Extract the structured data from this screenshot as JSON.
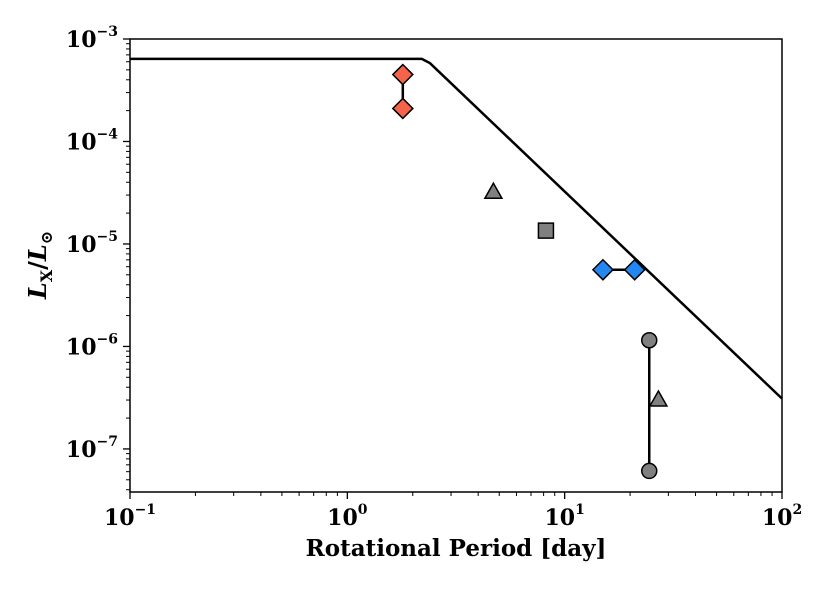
{
  "chart_data": {
    "type": "scatter",
    "xscale": "log",
    "yscale": "log",
    "xlim": [
      0.1,
      100
    ],
    "ylim": [
      3.8e-08,
      0.001
    ],
    "xlabel": "Rotational Period [day]",
    "ylabel": {
      "main": "L",
      "sub_x": "X",
      "slash": "/",
      "main2": "L",
      "sun": "⊙"
    },
    "x_ticks": [
      {
        "value": 0.1,
        "base": "10",
        "exp": "−1"
      },
      {
        "value": 1,
        "base": "10",
        "exp": "0"
      },
      {
        "value": 10,
        "base": "10",
        "exp": "1"
      },
      {
        "value": 100,
        "base": "10",
        "exp": "2"
      }
    ],
    "y_ticks": [
      {
        "value": 1e-07,
        "base": "10",
        "exp": "−7"
      },
      {
        "value": 1e-06,
        "base": "10",
        "exp": "−6"
      },
      {
        "value": 1e-05,
        "base": "10",
        "exp": "−5"
      },
      {
        "value": 0.0001,
        "base": "10",
        "exp": "−4"
      },
      {
        "value": 0.001,
        "base": "10",
        "exp": "−3"
      }
    ],
    "model_curve": {
      "points": [
        [
          0.1,
          0.00064
        ],
        [
          2.2,
          0.00064
        ],
        [
          2.4,
          0.00058
        ],
        [
          100,
          3.1e-07
        ]
      ],
      "color": "#000000"
    },
    "series": [
      {
        "name": "red-diamonds",
        "marker": "diamond",
        "color": "#f4634a",
        "points": [
          [
            1.8,
            0.00045
          ],
          [
            1.8,
            0.00021
          ]
        ],
        "connected": true
      },
      {
        "name": "blue-diamonds",
        "marker": "diamond",
        "color": "#2387f1",
        "points": [
          [
            15,
            5.6e-06
          ],
          [
            21,
            5.6e-06
          ]
        ],
        "connected": true
      },
      {
        "name": "gray-triangles",
        "marker": "triangle",
        "color": "#808080",
        "points": [
          [
            4.7,
            3.2e-05
          ],
          [
            27,
            3e-07
          ]
        ],
        "connected": false
      },
      {
        "name": "gray-square",
        "marker": "square",
        "color": "#808080",
        "points": [
          [
            8.2,
            1.35e-05
          ]
        ],
        "connected": false
      },
      {
        "name": "gray-circles",
        "marker": "circle",
        "color": "#808080",
        "points": [
          [
            24.5,
            1.15e-06
          ],
          [
            24.5,
            6.1e-08
          ]
        ],
        "connected": true
      }
    ]
  }
}
